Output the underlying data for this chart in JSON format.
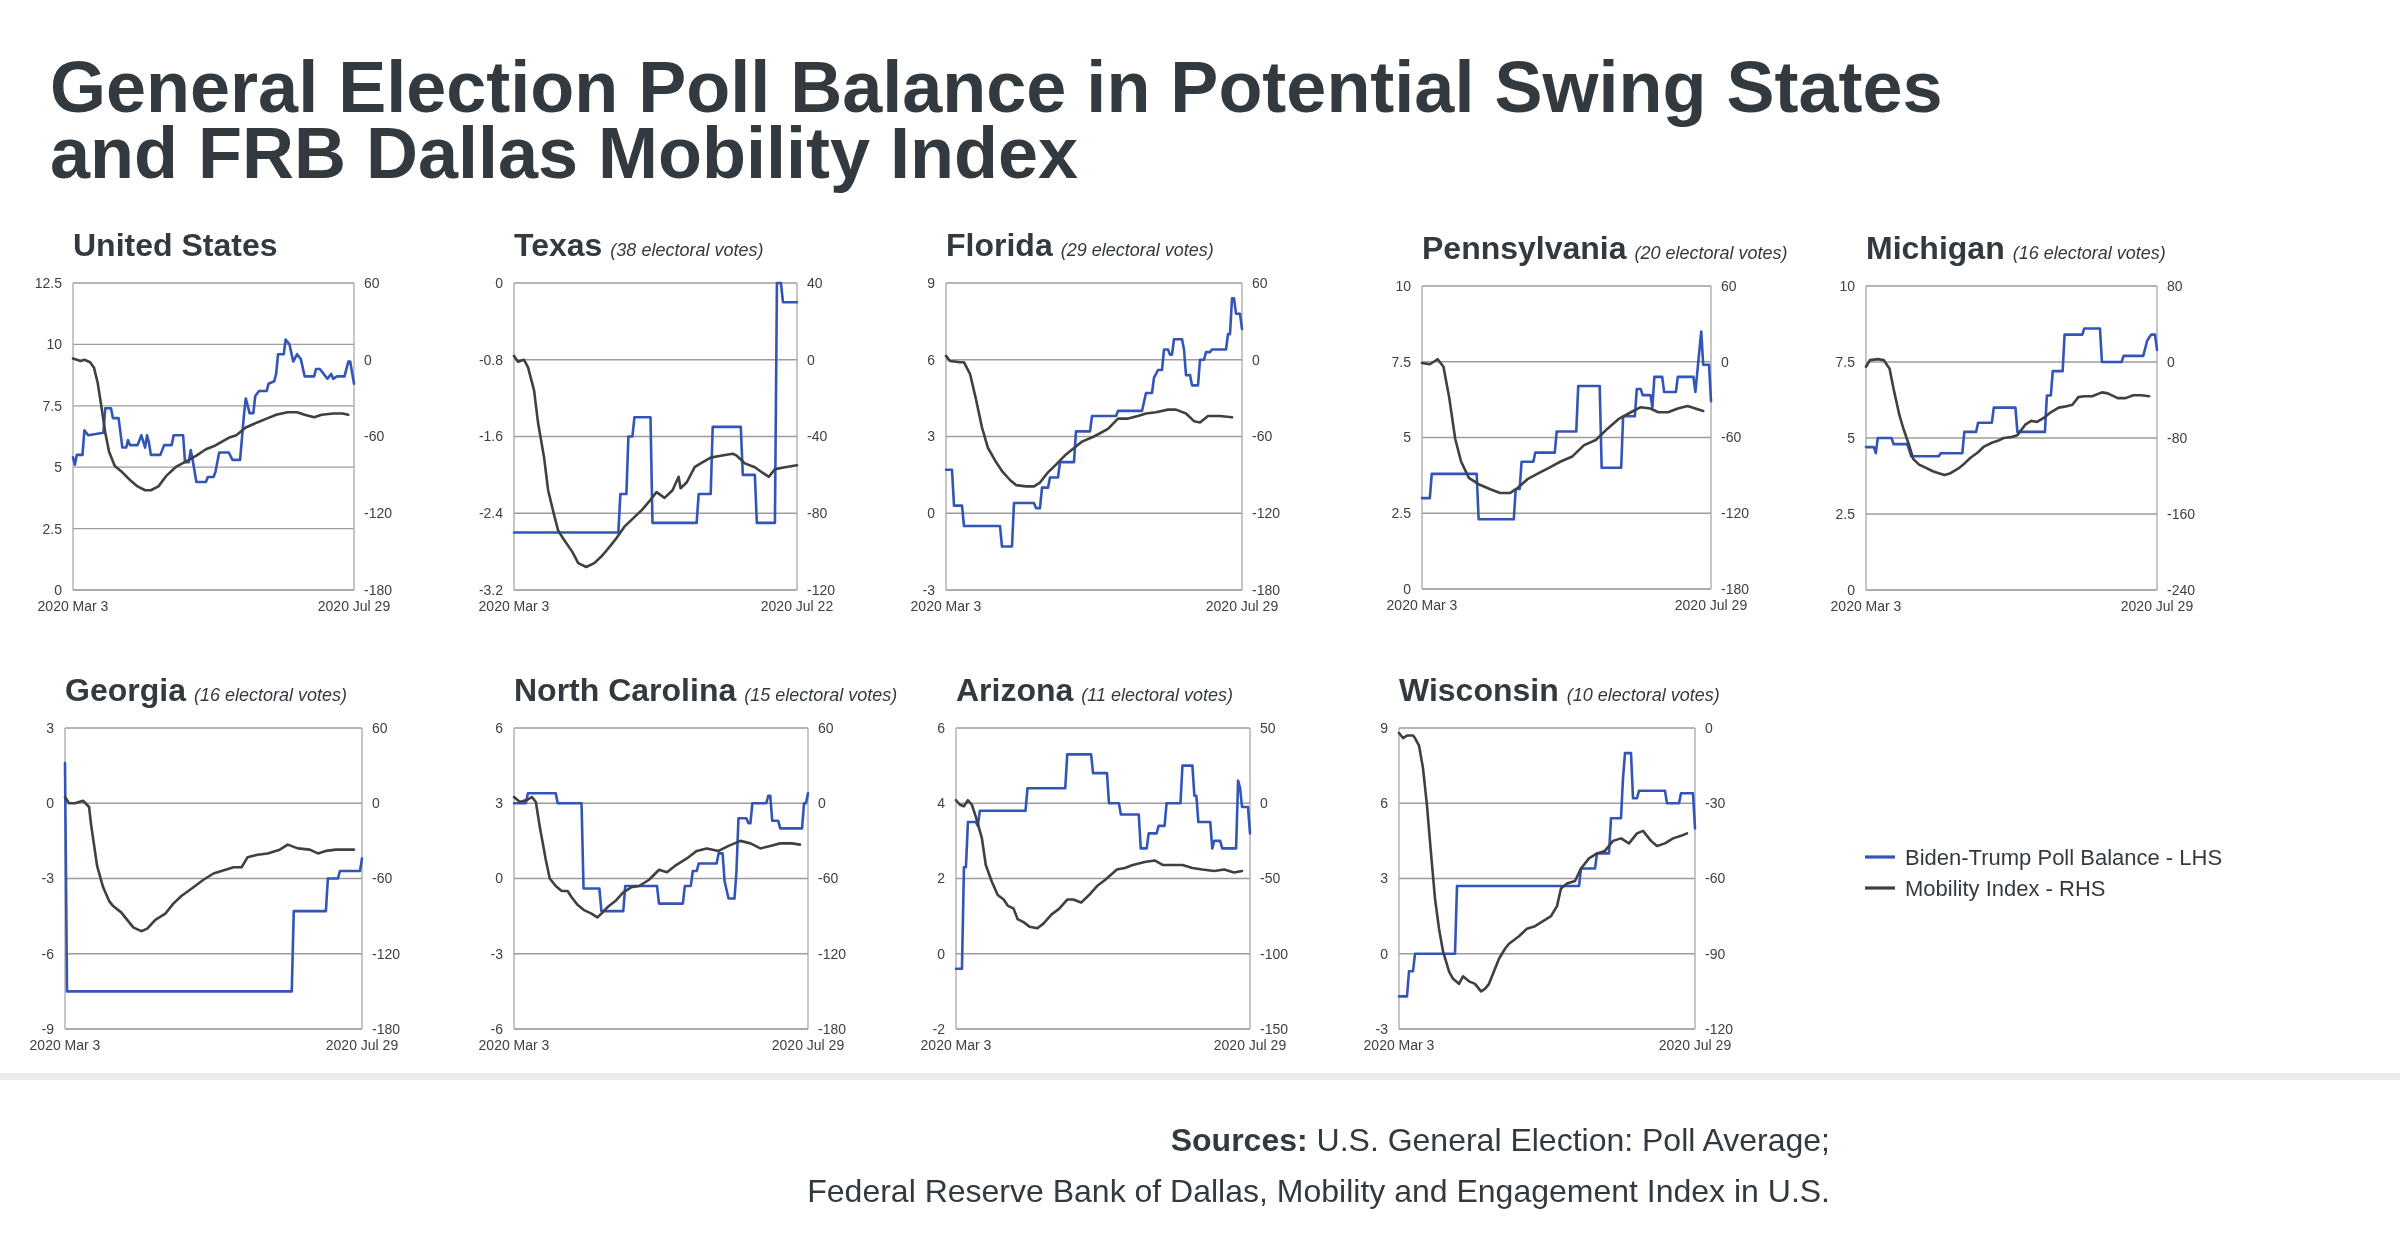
{
  "chart_data": [
    {
      "type": "other",
      "title": "General Election Poll Balance in Potential Swing States and FRB Dallas Mobility Index"
    },
    {
      "type": "line",
      "title": "United States",
      "xlim": [
        "2020-03-03",
        "2020-07-29"
      ],
      "xticks": [
        {
          "value": "2020-03-03",
          "label": "2020 Mar 3"
        },
        {
          "value": "2020-07-29",
          "label": "2020 Jul 29"
        }
      ],
      "ylim": [
        0,
        12.5
      ],
      "yticks": [
        0,
        2.5,
        5,
        7.5,
        10,
        12.5
      ],
      "y2lim": [
        -180,
        60
      ],
      "y2ticks": [
        -180,
        -120,
        -60,
        0,
        60
      ],
      "grid": "y",
      "series": [
        {
          "color": "#3355b8",
          "x": [
            "2020-03-03",
            "2020-03-04",
            "2020-03-05",
            "2020-03-08",
            "2020-03-09",
            "2020-03-11",
            "2020-03-19",
            "2020-03-20",
            "2020-03-23",
            "2020-03-24",
            "2020-03-27",
            "2020-03-29",
            "2020-03-31",
            "2020-04-01",
            "2020-04-02",
            "2020-04-06",
            "2020-04-08",
            "2020-04-10",
            "2020-04-11",
            "2020-04-12",
            "2020-04-13",
            "2020-04-18",
            "2020-04-20",
            "2020-04-24",
            "2020-04-25",
            "2020-04-30",
            "2020-05-01",
            "2020-05-03",
            "2020-05-04",
            "2020-05-05",
            "2020-05-07",
            "2020-05-12",
            "2020-05-13",
            "2020-05-16",
            "2020-05-17",
            "2020-05-19",
            "2020-05-24",
            "2020-05-26",
            "2020-05-30",
            "2020-06-01",
            "2020-06-02",
            "2020-06-04",
            "2020-06-06",
            "2020-06-07",
            "2020-06-09",
            "2020-06-13",
            "2020-06-14",
            "2020-06-17",
            "2020-06-18",
            "2020-06-19",
            "2020-06-22",
            "2020-06-23",
            "2020-06-25",
            "2020-06-27",
            "2020-06-29",
            "2020-07-01",
            "2020-07-03",
            "2020-07-08",
            "2020-07-09",
            "2020-07-11",
            "2020-07-13",
            "2020-07-15",
            "2020-07-17",
            "2020-07-18",
            "2020-07-20",
            "2020-07-24",
            "2020-07-26",
            "2020-07-27",
            "2020-07-29"
          ],
          "values": [
            5.4,
            5.1,
            5.5,
            5.5,
            6.5,
            6.3,
            6.4,
            7.4,
            7.4,
            7.0,
            7.0,
            5.8,
            5.8,
            6.1,
            5.9,
            5.9,
            6.3,
            5.8,
            6.3,
            6.0,
            5.5,
            5.5,
            5.9,
            5.9,
            6.3,
            6.3,
            5.2,
            5.2,
            5.7,
            5.3,
            4.4,
            4.4,
            4.6,
            4.6,
            4.8,
            5.6,
            5.6,
            5.3,
            5.3,
            7.1,
            7.8,
            7.2,
            7.2,
            7.9,
            8.1,
            8.1,
            8.4,
            8.5,
            8.8,
            9.6,
            9.6,
            10.2,
            10.0,
            9.3,
            9.6,
            9.4,
            8.7,
            8.7,
            9.0,
            9.0,
            8.8,
            8.6,
            8.8,
            8.6,
            8.7,
            8.7,
            9.3,
            9.3,
            8.4
          ]
        },
        {
          "color": "#404040",
          "axis": "y2",
          "x": [
            "2020-03-03",
            "2020-03-07",
            "2020-03-09",
            "2020-03-12",
            "2020-03-14",
            "2020-03-16",
            "2020-03-18",
            "2020-03-20",
            "2020-03-22",
            "2020-03-25",
            "2020-03-29",
            "2020-04-02",
            "2020-04-06",
            "2020-04-10",
            "2020-04-13",
            "2020-04-17",
            "2020-04-21",
            "2020-04-26",
            "2020-05-02",
            "2020-05-07",
            "2020-05-12",
            "2020-05-17",
            "2020-05-24",
            "2020-05-28",
            "2020-06-02",
            "2020-06-08",
            "2020-06-13",
            "2020-06-18",
            "2020-06-24",
            "2020-06-29",
            "2020-07-03",
            "2020-07-08",
            "2020-07-12",
            "2020-07-18",
            "2020-07-23",
            "2020-07-26"
          ],
          "values": [
            1,
            -1,
            0,
            -2,
            -6,
            -18,
            -37,
            -57,
            -72,
            -83,
            -88,
            -94,
            -99,
            -102,
            -102,
            -99,
            -91,
            -84,
            -79,
            -75,
            -70,
            -67,
            -61,
            -59,
            -53,
            -49,
            -46,
            -43,
            -41,
            -41,
            -43,
            -45,
            -43,
            -42,
            -42,
            -43
          ]
        }
      ]
    },
    {
      "type": "line",
      "title": "Texas",
      "subtitle": "(38 electoral votes)",
      "xlim": [
        "2020-03-03",
        "2020-07-22"
      ],
      "xticks": [
        {
          "value": "2020-03-03",
          "label": "2020 Mar 3"
        },
        {
          "value": "2020-07-22",
          "label": "2020 Jul 22"
        }
      ],
      "ylim": [
        -3.2,
        0
      ],
      "yticks": [
        -3.2,
        -2.4,
        -1.6,
        -0.8,
        0
      ],
      "y2lim": [
        -120,
        40
      ],
      "y2ticks": [
        -120,
        -80,
        -40,
        0,
        40
      ],
      "grid": "y",
      "series": [
        {
          "color": "#3355b8",
          "x": [
            "2020-03-03",
            "2020-04-24",
            "2020-04-25",
            "2020-04-28",
            "2020-04-29",
            "2020-05-01",
            "2020-05-02",
            "2020-05-10",
            "2020-05-11",
            "2020-06-02",
            "2020-06-03",
            "2020-06-09",
            "2020-06-10",
            "2020-06-24",
            "2020-06-25",
            "2020-07-01",
            "2020-07-02",
            "2020-07-11",
            "2020-07-12",
            "2020-07-14",
            "2020-07-15",
            "2020-07-22"
          ],
          "values": [
            -2.6,
            -2.6,
            -2.2,
            -2.2,
            -1.6,
            -1.6,
            -1.4,
            -1.4,
            -2.5,
            -2.5,
            -2.2,
            -2.2,
            -1.5,
            -1.5,
            -2.0,
            -2.0,
            -2.5,
            -2.5,
            0,
            0,
            -0.2,
            -0.2
          ]
        },
        {
          "color": "#404040",
          "axis": "y2",
          "x": [
            "2020-03-03",
            "2020-03-05",
            "2020-03-08",
            "2020-03-10",
            "2020-03-13",
            "2020-03-15",
            "2020-03-18",
            "2020-03-20",
            "2020-03-23",
            "2020-03-25",
            "2020-03-28",
            "2020-04-01",
            "2020-04-04",
            "2020-04-08",
            "2020-04-12",
            "2020-04-16",
            "2020-04-20",
            "2020-04-23",
            "2020-04-27",
            "2020-05-02",
            "2020-05-06",
            "2020-05-10",
            "2020-05-13",
            "2020-05-17",
            "2020-05-21",
            "2020-05-24",
            "2020-05-25",
            "2020-05-28",
            "2020-06-01",
            "2020-06-04",
            "2020-06-09",
            "2020-06-14",
            "2020-06-20",
            "2020-06-22",
            "2020-06-26",
            "2020-07-01",
            "2020-07-05",
            "2020-07-08",
            "2020-07-11",
            "2020-07-16",
            "2020-07-22"
          ],
          "values": [
            2,
            -1,
            0,
            -4,
            -16,
            -33,
            -51,
            -68,
            -81,
            -89,
            -94,
            -100,
            -106,
            -108,
            -106,
            -102,
            -97,
            -93,
            -87,
            -82,
            -78,
            -73,
            -69,
            -72,
            -68,
            -61,
            -67,
            -64,
            -56,
            -54,
            -51,
            -50,
            -49,
            -50,
            -54,
            -56,
            -59,
            -61,
            -57,
            -56,
            -55
          ]
        }
      ]
    },
    {
      "type": "line",
      "title": "Florida",
      "subtitle": "(29 electoral votes)",
      "xlim": [
        "2020-03-03",
        "2020-07-29"
      ],
      "xticks": [
        {
          "value": "2020-03-03",
          "label": "2020 Mar 3"
        },
        {
          "value": "2020-07-29",
          "label": "2020 Jul 29"
        }
      ],
      "ylim": [
        -3,
        9
      ],
      "yticks": [
        -3,
        0,
        3,
        6,
        9
      ],
      "y2lim": [
        -180,
        60
      ],
      "y2ticks": [
        -180,
        -120,
        -60,
        0,
        60
      ],
      "grid": "y",
      "series": [
        {
          "color": "#3355b8",
          "x": [
            "2020-03-03",
            "2020-03-06",
            "2020-03-07",
            "2020-03-11",
            "2020-03-12",
            "2020-03-30",
            "2020-03-31",
            "2020-04-05",
            "2020-04-06",
            "2020-04-16",
            "2020-04-17",
            "2020-04-19",
            "2020-04-20",
            "2020-04-23",
            "2020-04-24",
            "2020-04-28",
            "2020-04-29",
            "2020-05-06",
            "2020-05-07",
            "2020-05-14",
            "2020-05-15",
            "2020-05-27",
            "2020-05-28",
            "2020-06-09",
            "2020-06-11",
            "2020-06-14",
            "2020-06-15",
            "2020-06-17",
            "2020-06-19",
            "2020-06-20",
            "2020-06-22",
            "2020-06-23",
            "2020-06-24",
            "2020-06-25",
            "2020-06-29",
            "2020-06-30",
            "2020-07-01",
            "2020-07-03",
            "2020-07-04",
            "2020-07-07",
            "2020-07-08",
            "2020-07-10",
            "2020-07-11",
            "2020-07-13",
            "2020-07-14",
            "2020-07-21",
            "2020-07-22",
            "2020-07-23",
            "2020-07-24",
            "2020-07-25",
            "2020-07-26",
            "2020-07-28",
            "2020-07-29"
          ],
          "values": [
            1.7,
            1.7,
            0.3,
            0.3,
            -0.5,
            -0.5,
            -1.3,
            -1.3,
            0.4,
            0.4,
            0.2,
            0.2,
            1.0,
            1.0,
            1.4,
            1.4,
            2.0,
            2.0,
            3.2,
            3.2,
            3.8,
            3.8,
            4.0,
            4.0,
            4.7,
            4.7,
            5.3,
            5.6,
            5.6,
            6.4,
            6.4,
            6.2,
            6.2,
            6.8,
            6.8,
            6.4,
            5.4,
            5.4,
            5.0,
            5.0,
            6.0,
            6.0,
            6.3,
            6.3,
            6.4,
            6.4,
            7.0,
            7.0,
            8.4,
            8.4,
            7.8,
            7.8,
            7.2
          ]
        },
        {
          "color": "#404040",
          "axis": "y2",
          "x": [
            "2020-03-03",
            "2020-03-05",
            "2020-03-10",
            "2020-03-12",
            "2020-03-15",
            "2020-03-18",
            "2020-03-21",
            "2020-03-24",
            "2020-03-28",
            "2020-03-31",
            "2020-04-04",
            "2020-04-07",
            "2020-04-12",
            "2020-04-16",
            "2020-04-19",
            "2020-04-23",
            "2020-04-27",
            "2020-05-02",
            "2020-05-06",
            "2020-05-10",
            "2020-05-16",
            "2020-05-23",
            "2020-05-28",
            "2020-06-02",
            "2020-06-07",
            "2020-06-11",
            "2020-06-16",
            "2020-06-22",
            "2020-06-26",
            "2020-07-01",
            "2020-07-05",
            "2020-07-08",
            "2020-07-12",
            "2020-07-18",
            "2020-07-24"
          ],
          "values": [
            3,
            -1,
            -2,
            -2,
            -11,
            -31,
            -53,
            -69,
            -80,
            -87,
            -94,
            -98,
            -99,
            -99,
            -96,
            -88,
            -82,
            -74,
            -69,
            -64,
            -60,
            -54,
            -46,
            -46,
            -44,
            -42,
            -41,
            -39,
            -39,
            -42,
            -48,
            -49,
            -44,
            -44,
            -45
          ]
        }
      ]
    },
    {
      "type": "line",
      "title": "Pennsylvania",
      "subtitle": "(20 electoral votes)",
      "xlim": [
        "2020-03-03",
        "2020-07-29"
      ],
      "xticks": [
        {
          "value": "2020-03-03",
          "label": "2020 Mar 3"
        },
        {
          "value": "2020-07-29",
          "label": "2020 Jul 29"
        }
      ],
      "ylim": [
        0,
        10
      ],
      "yticks": [
        0,
        2.5,
        5,
        7.5,
        10
      ],
      "y2lim": [
        -180,
        60
      ],
      "y2ticks": [
        -180,
        -120,
        -60,
        0,
        60
      ],
      "grid": "y",
      "series": [
        {
          "color": "#3355b8",
          "x": [
            "2020-03-03",
            "2020-03-07",
            "2020-03-08",
            "2020-03-31",
            "2020-04-01",
            "2020-04-19",
            "2020-04-20",
            "2020-04-22",
            "2020-04-23",
            "2020-04-29",
            "2020-04-30",
            "2020-05-10",
            "2020-05-11",
            "2020-05-21",
            "2020-05-22",
            "2020-06-02",
            "2020-06-03",
            "2020-06-13",
            "2020-06-14",
            "2020-06-20",
            "2020-06-21",
            "2020-06-23",
            "2020-06-24",
            "2020-06-28",
            "2020-06-29",
            "2020-06-30",
            "2020-07-04",
            "2020-07-05",
            "2020-07-11",
            "2020-07-12",
            "2020-07-20",
            "2020-07-21",
            "2020-07-24",
            "2020-07-25",
            "2020-07-28",
            "2020-07-29"
          ],
          "values": [
            3.0,
            3.0,
            3.8,
            3.8,
            2.3,
            2.3,
            3.3,
            3.3,
            4.2,
            4.2,
            4.5,
            4.5,
            5.2,
            5.2,
            6.7,
            6.7,
            4.0,
            4.0,
            5.7,
            5.7,
            6.6,
            6.6,
            6.4,
            6.4,
            6.0,
            7.0,
            7.0,
            6.5,
            6.5,
            7.0,
            7.0,
            6.5,
            8.5,
            7.4,
            7.4,
            6.2
          ]
        },
        {
          "color": "#404040",
          "axis": "y2",
          "x": [
            "2020-03-03",
            "2020-03-07",
            "2020-03-11",
            "2020-03-14",
            "2020-03-17",
            "2020-03-20",
            "2020-03-23",
            "2020-03-27",
            "2020-04-01",
            "2020-04-07",
            "2020-04-12",
            "2020-04-17",
            "2020-04-21",
            "2020-04-26",
            "2020-05-02",
            "2020-05-07",
            "2020-05-13",
            "2020-05-19",
            "2020-05-25",
            "2020-05-31",
            "2020-06-06",
            "2020-06-12",
            "2020-06-18",
            "2020-06-23",
            "2020-06-28",
            "2020-07-02",
            "2020-07-07",
            "2020-07-12",
            "2020-07-17",
            "2020-07-21",
            "2020-07-25"
          ],
          "values": [
            -1,
            -2,
            2,
            -4,
            -29,
            -61,
            -79,
            -92,
            -97,
            -101,
            -104,
            -104,
            -100,
            -93,
            -88,
            -84,
            -79,
            -75,
            -66,
            -62,
            -53,
            -45,
            -40,
            -36,
            -37,
            -40,
            -40,
            -37,
            -35,
            -37,
            -39
          ]
        }
      ]
    },
    {
      "type": "line",
      "title": "Michigan",
      "subtitle": "(16 electoral votes)",
      "xlim": [
        "2020-03-03",
        "2020-07-29"
      ],
      "xticks": [
        {
          "value": "2020-03-03",
          "label": "2020 Mar 3"
        },
        {
          "value": "2020-07-29",
          "label": "2020 Jul 29"
        }
      ],
      "ylim": [
        0,
        10
      ],
      "yticks": [
        0,
        2.5,
        5,
        7.5,
        10
      ],
      "y2lim": [
        -240,
        80
      ],
      "y2ticks": [
        -240,
        -160,
        -80,
        0,
        80
      ],
      "grid": "y",
      "series": [
        {
          "color": "#3355b8",
          "x": [
            "2020-03-03",
            "2020-03-07",
            "2020-03-08",
            "2020-03-09",
            "2020-03-16",
            "2020-03-17",
            "2020-03-24",
            "2020-03-26",
            "2020-04-09",
            "2020-04-10",
            "2020-04-21",
            "2020-04-22",
            "2020-04-28",
            "2020-04-29",
            "2020-05-06",
            "2020-05-07",
            "2020-05-18",
            "2020-05-19",
            "2020-06-02",
            "2020-06-03",
            "2020-06-05",
            "2020-06-06",
            "2020-06-11",
            "2020-06-12",
            "2020-06-21",
            "2020-06-22",
            "2020-06-30",
            "2020-07-01",
            "2020-07-11",
            "2020-07-12",
            "2020-07-22",
            "2020-07-24",
            "2020-07-26",
            "2020-07-28",
            "2020-07-29"
          ],
          "values": [
            4.7,
            4.7,
            4.5,
            5.0,
            5.0,
            4.8,
            4.8,
            4.4,
            4.4,
            4.5,
            4.5,
            5.2,
            5.2,
            5.5,
            5.5,
            6.0,
            6.0,
            5.2,
            5.2,
            6.4,
            6.4,
            7.2,
            7.2,
            8.4,
            8.4,
            8.6,
            8.6,
            7.5,
            7.5,
            7.7,
            7.7,
            8.2,
            8.4,
            8.4,
            7.9
          ]
        },
        {
          "color": "#404040",
          "axis": "y2",
          "x": [
            "2020-03-03",
            "2020-03-05",
            "2020-03-09",
            "2020-03-12",
            "2020-03-15",
            "2020-03-17",
            "2020-03-20",
            "2020-03-22",
            "2020-03-25",
            "2020-03-27",
            "2020-03-30",
            "2020-04-02",
            "2020-04-06",
            "2020-04-09",
            "2020-04-12",
            "2020-04-15",
            "2020-04-19",
            "2020-04-22",
            "2020-04-25",
            "2020-04-29",
            "2020-05-02",
            "2020-05-06",
            "2020-05-09",
            "2020-05-12",
            "2020-05-16",
            "2020-05-19",
            "2020-05-23",
            "2020-05-26",
            "2020-05-29",
            "2020-06-02",
            "2020-06-05",
            "2020-06-09",
            "2020-06-12",
            "2020-06-16",
            "2020-06-19",
            "2020-06-22",
            "2020-06-26",
            "2020-07-01",
            "2020-07-04",
            "2020-07-09",
            "2020-07-13",
            "2020-07-17",
            "2020-07-21",
            "2020-07-25"
          ],
          "values": [
            -5,
            2,
            3,
            2,
            -7,
            -28,
            -56,
            -70,
            -88,
            -102,
            -108,
            -111,
            -115,
            -117,
            -119,
            -117,
            -112,
            -107,
            -101,
            -95,
            -89,
            -85,
            -83,
            -80,
            -79,
            -77,
            -66,
            -62,
            -63,
            -58,
            -53,
            -48,
            -47,
            -45,
            -37,
            -36,
            -36,
            -32,
            -33,
            -38,
            -38,
            -35,
            -35,
            -36
          ]
        }
      ]
    },
    {
      "type": "line",
      "title": "Georgia",
      "subtitle": "(16 electoral votes)",
      "xlim": [
        "2020-03-03",
        "2020-07-29"
      ],
      "xticks": [
        {
          "value": "2020-03-03",
          "label": "2020 Mar 3"
        },
        {
          "value": "2020-07-29",
          "label": "2020 Jul 29"
        }
      ],
      "ylim": [
        -9,
        3
      ],
      "yticks": [
        -9,
        -6,
        -3,
        0,
        3
      ],
      "y2lim": [
        -180,
        60
      ],
      "y2ticks": [
        -180,
        -120,
        -60,
        0,
        60
      ],
      "grid": "y",
      "series": [
        {
          "color": "#3355b8",
          "x": [
            "2020-03-03",
            "2020-03-04",
            "2020-06-24",
            "2020-06-25",
            "2020-07-11",
            "2020-07-12",
            "2020-07-17",
            "2020-07-18",
            "2020-07-28",
            "2020-07-29"
          ],
          "values": [
            1.6,
            -7.5,
            -7.5,
            -4.3,
            -4.3,
            -3.0,
            -3.0,
            -2.7,
            -2.7,
            -2.2
          ]
        },
        {
          "color": "#404040",
          "axis": "y2",
          "x": [
            "2020-03-03",
            "2020-03-05",
            "2020-03-08",
            "2020-03-12",
            "2020-03-15",
            "2020-03-16",
            "2020-03-19",
            "2020-03-22",
            "2020-03-25",
            "2020-03-27",
            "2020-03-31",
            "2020-04-03",
            "2020-04-06",
            "2020-04-10",
            "2020-04-13",
            "2020-04-17",
            "2020-04-22",
            "2020-04-26",
            "2020-04-30",
            "2020-05-06",
            "2020-05-11",
            "2020-05-16",
            "2020-05-22",
            "2020-05-26",
            "2020-05-30",
            "2020-06-02",
            "2020-06-07",
            "2020-06-12",
            "2020-06-18",
            "2020-06-22",
            "2020-06-27",
            "2020-07-03",
            "2020-07-07",
            "2020-07-11",
            "2020-07-16",
            "2020-07-22",
            "2020-07-25"
          ],
          "values": [
            5,
            0,
            0,
            2,
            -3,
            -17,
            -50,
            -67,
            -78,
            -82,
            -87,
            -93,
            -99,
            -102,
            -100,
            -93,
            -88,
            -80,
            -74,
            -67,
            -61,
            -56,
            -53,
            -51,
            -51,
            -43,
            -41,
            -40,
            -37,
            -33,
            -36,
            -37,
            -40,
            -38,
            -37,
            -37,
            -37
          ]
        }
      ]
    },
    {
      "type": "line",
      "title": "North Carolina",
      "subtitle": "(15 electoral votes)",
      "xlim": [
        "2020-03-03",
        "2020-07-29"
      ],
      "xticks": [
        {
          "value": "2020-03-03",
          "label": "2020 Mar 3"
        },
        {
          "value": "2020-07-29",
          "label": "2020 Jul 29"
        }
      ],
      "ylim": [
        -6,
        6
      ],
      "yticks": [
        -6,
        -3,
        0,
        3,
        6
      ],
      "y2lim": [
        -180,
        60
      ],
      "y2ticks": [
        -180,
        -120,
        -60,
        0,
        60
      ],
      "grid": "y",
      "series": [
        {
          "color": "#3355b8",
          "x": [
            "2020-03-03",
            "2020-03-09",
            "2020-03-10",
            "2020-03-24",
            "2020-03-25",
            "2020-04-06",
            "2020-04-07",
            "2020-04-15",
            "2020-04-16",
            "2020-04-27",
            "2020-04-28",
            "2020-05-14",
            "2020-05-15",
            "2020-05-27",
            "2020-05-28",
            "2020-05-31",
            "2020-06-01",
            "2020-06-03",
            "2020-06-04",
            "2020-06-13",
            "2020-06-14",
            "2020-06-16",
            "2020-06-17",
            "2020-06-19",
            "2020-06-22",
            "2020-06-23",
            "2020-06-24",
            "2020-06-28",
            "2020-06-29",
            "2020-06-30",
            "2020-07-01",
            "2020-07-08",
            "2020-07-09",
            "2020-07-10",
            "2020-07-11",
            "2020-07-14",
            "2020-07-15",
            "2020-07-26",
            "2020-07-27",
            "2020-07-28",
            "2020-07-29"
          ],
          "values": [
            3.0,
            3.0,
            3.4,
            3.4,
            3.0,
            3.0,
            -0.4,
            -0.4,
            -1.3,
            -1.3,
            -0.3,
            -0.3,
            -1.0,
            -1.0,
            -0.3,
            -0.3,
            0.3,
            0.3,
            0.6,
            0.6,
            1.0,
            1.0,
            -0.1,
            -0.8,
            -0.8,
            0.3,
            2.4,
            2.4,
            2.2,
            2.2,
            3.0,
            3.0,
            3.3,
            3.3,
            2.3,
            2.3,
            2.0,
            2.0,
            3.0,
            3.0,
            3.4
          ]
        },
        {
          "color": "#404040",
          "axis": "y2",
          "x": [
            "2020-03-03",
            "2020-03-06",
            "2020-03-10",
            "2020-03-12",
            "2020-03-14",
            "2020-03-16",
            "2020-03-19",
            "2020-03-21",
            "2020-03-24",
            "2020-03-27",
            "2020-03-30",
            "2020-04-01",
            "2020-04-04",
            "2020-04-07",
            "2020-04-11",
            "2020-04-14",
            "2020-04-16",
            "2020-04-19",
            "2020-04-23",
            "2020-04-27",
            "2020-05-01",
            "2020-05-05",
            "2020-05-10",
            "2020-05-15",
            "2020-05-19",
            "2020-05-23",
            "2020-05-29",
            "2020-06-03",
            "2020-06-08",
            "2020-06-14",
            "2020-06-19",
            "2020-06-25",
            "2020-06-30",
            "2020-07-05",
            "2020-07-10",
            "2020-07-15",
            "2020-07-21",
            "2020-07-25"
          ],
          "values": [
            5,
            1,
            3,
            5,
            1,
            -19,
            -45,
            -60,
            -66,
            -70,
            -70,
            -75,
            -81,
            -85,
            -88,
            -91,
            -88,
            -83,
            -78,
            -71,
            -67,
            -66,
            -61,
            -53,
            -55,
            -50,
            -44,
            -38,
            -36,
            -38,
            -34,
            -30,
            -32,
            -36,
            -34,
            -32,
            -32,
            -33
          ]
        }
      ]
    },
    {
      "type": "line",
      "title": "Arizona",
      "subtitle": "(11 electoral votes)",
      "xlim": [
        "2020-03-03",
        "2020-07-29"
      ],
      "xticks": [
        {
          "value": "2020-03-03",
          "label": "2020 Mar 3"
        },
        {
          "value": "2020-07-29",
          "label": "2020 Jul 29"
        }
      ],
      "ylim": [
        -2,
        6
      ],
      "yticks": [
        -2,
        0,
        2,
        4,
        6
      ],
      "y2lim": [
        -150,
        50
      ],
      "y2ticks": [
        -150,
        -100,
        -50,
        0,
        50
      ],
      "grid": "y",
      "series": [
        {
          "color": "#3355b8",
          "x": [
            "2020-03-03",
            "2020-03-06",
            "2020-03-07",
            "2020-03-08",
            "2020-03-09",
            "2020-03-13",
            "2020-03-14",
            "2020-03-15",
            "2020-04-07",
            "2020-04-08",
            "2020-04-27",
            "2020-04-28",
            "2020-05-10",
            "2020-05-11",
            "2020-05-18",
            "2020-05-19",
            "2020-05-24",
            "2020-05-25",
            "2020-06-03",
            "2020-06-04",
            "2020-06-07",
            "2020-06-08",
            "2020-06-12",
            "2020-06-13",
            "2020-06-16",
            "2020-06-17",
            "2020-06-24",
            "2020-06-25",
            "2020-06-30",
            "2020-07-01",
            "2020-07-02",
            "2020-07-03",
            "2020-07-09",
            "2020-07-10",
            "2020-07-11",
            "2020-07-14",
            "2020-07-15",
            "2020-07-22",
            "2020-07-23",
            "2020-07-24",
            "2020-07-25",
            "2020-07-28",
            "2020-07-29"
          ],
          "values": [
            -0.4,
            -0.4,
            2.3,
            2.3,
            3.5,
            3.5,
            3.4,
            3.8,
            3.8,
            4.4,
            4.4,
            5.3,
            5.3,
            4.8,
            4.8,
            4.0,
            4.0,
            3.7,
            3.7,
            2.8,
            2.8,
            3.2,
            3.2,
            3.4,
            3.4,
            4.0,
            4.0,
            5.0,
            5.0,
            4.2,
            4.2,
            3.5,
            3.5,
            2.8,
            3.0,
            3.0,
            2.8,
            2.8,
            4.6,
            4.4,
            3.9,
            3.9,
            3.2
          ]
        },
        {
          "color": "#404040",
          "axis": "y2",
          "x": [
            "2020-03-03",
            "2020-03-05",
            "2020-03-07",
            "2020-03-09",
            "2020-03-11",
            "2020-03-13",
            "2020-03-16",
            "2020-03-18",
            "2020-03-21",
            "2020-03-24",
            "2020-03-27",
            "2020-03-29",
            "2020-04-01",
            "2020-04-03",
            "2020-04-06",
            "2020-04-09",
            "2020-04-13",
            "2020-04-16",
            "2020-04-20",
            "2020-04-24",
            "2020-04-28",
            "2020-05-01",
            "2020-05-05",
            "2020-05-09",
            "2020-05-13",
            "2020-05-17",
            "2020-05-23",
            "2020-05-27",
            "2020-05-31",
            "2020-06-06",
            "2020-06-11",
            "2020-06-15",
            "2020-06-21",
            "2020-06-25",
            "2020-06-30",
            "2020-07-05",
            "2020-07-11",
            "2020-07-16",
            "2020-07-21",
            "2020-07-25"
          ],
          "values": [
            2,
            -1,
            -2,
            2,
            -1,
            -9,
            -23,
            -41,
            -52,
            -61,
            -64,
            -68,
            -70,
            -77,
            -79,
            -82,
            -83,
            -80,
            -74,
            -70,
            -64,
            -64,
            -66,
            -61,
            -55,
            -51,
            -44,
            -43,
            -41,
            -39,
            -38,
            -41,
            -41,
            -41,
            -43,
            -44,
            -45,
            -44,
            -46,
            -45
          ]
        }
      ]
    },
    {
      "type": "line",
      "title": "Wisconsin",
      "subtitle": "(10 electoral votes)",
      "xlim": [
        "2020-03-03",
        "2020-07-29"
      ],
      "xticks": [
        {
          "value": "2020-03-03",
          "label": "2020 Mar 3"
        },
        {
          "value": "2020-07-29",
          "label": "2020 Jul 29"
        }
      ],
      "ylim": [
        -3,
        9
      ],
      "yticks": [
        -3,
        0,
        3,
        6,
        9
      ],
      "y2lim": [
        -120,
        0
      ],
      "y2ticks": [
        -120,
        -90,
        -60,
        -30,
        0
      ],
      "grid": "y",
      "legend": "right",
      "series": [
        {
          "name": "Biden-Trump Poll Balance - LHS",
          "color": "#3355b8",
          "x": [
            "2020-03-03",
            "2020-03-07",
            "2020-03-08",
            "2020-03-10",
            "2020-03-11",
            "2020-03-31",
            "2020-04-01",
            "2020-06-01",
            "2020-06-02",
            "2020-06-09",
            "2020-06-10",
            "2020-06-16",
            "2020-06-17",
            "2020-06-22",
            "2020-06-23",
            "2020-06-24",
            "2020-06-27",
            "2020-06-28",
            "2020-06-30",
            "2020-07-01",
            "2020-07-14",
            "2020-07-15",
            "2020-07-21",
            "2020-07-22",
            "2020-07-28",
            "2020-07-29"
          ],
          "values": [
            -1.7,
            -1.7,
            -0.7,
            -0.7,
            0.0,
            0.0,
            2.7,
            2.7,
            3.4,
            3.4,
            4.0,
            4.0,
            5.4,
            5.4,
            7.0,
            8.0,
            8.0,
            6.2,
            6.2,
            6.5,
            6.5,
            6.0,
            6.0,
            6.4,
            6.4,
            5.0
          ]
        },
        {
          "name": "Mobility Index - RHS",
          "color": "#404040",
          "axis": "y2",
          "x": [
            "2020-03-03",
            "2020-03-05",
            "2020-03-07",
            "2020-03-10",
            "2020-03-11",
            "2020-03-13",
            "2020-03-15",
            "2020-03-17",
            "2020-03-19",
            "2020-03-21",
            "2020-03-23",
            "2020-03-25",
            "2020-03-28",
            "2020-03-30",
            "2020-04-02",
            "2020-04-04",
            "2020-04-07",
            "2020-04-10",
            "2020-04-13",
            "2020-04-15",
            "2020-04-17",
            "2020-04-19",
            "2020-04-22",
            "2020-04-25",
            "2020-04-27",
            "2020-05-02",
            "2020-05-06",
            "2020-05-10",
            "2020-05-14",
            "2020-05-18",
            "2020-05-21",
            "2020-05-23",
            "2020-05-26",
            "2020-05-30",
            "2020-06-02",
            "2020-06-06",
            "2020-06-10",
            "2020-06-14",
            "2020-06-18",
            "2020-06-22",
            "2020-06-26",
            "2020-06-30",
            "2020-07-03",
            "2020-07-07",
            "2020-07-10",
            "2020-07-14",
            "2020-07-18",
            "2020-07-22",
            "2020-07-25"
          ],
          "values": [
            -2,
            -4,
            -3,
            -3,
            -4,
            -7,
            -16,
            -31,
            -50,
            -68,
            -80,
            -89,
            -97,
            -100,
            -102,
            -99,
            -101,
            -102,
            -105,
            -104,
            -102,
            -98,
            -92,
            -88,
            -86,
            -83,
            -80,
            -79,
            -77,
            -75,
            -71,
            -64,
            -62,
            -61,
            -56,
            -52,
            -50,
            -49,
            -45,
            -44,
            -46,
            -42,
            -41,
            -45,
            -47,
            -46,
            -44,
            -43,
            -42
          ]
        }
      ]
    },
    {
      "type": "other",
      "annotations": [
        "Sources: U.S. General Election: Poll Average;",
        "Federal Reserve Bank of Dallas, Mobility and Engagement Index in U.S."
      ]
    }
  ]
}
